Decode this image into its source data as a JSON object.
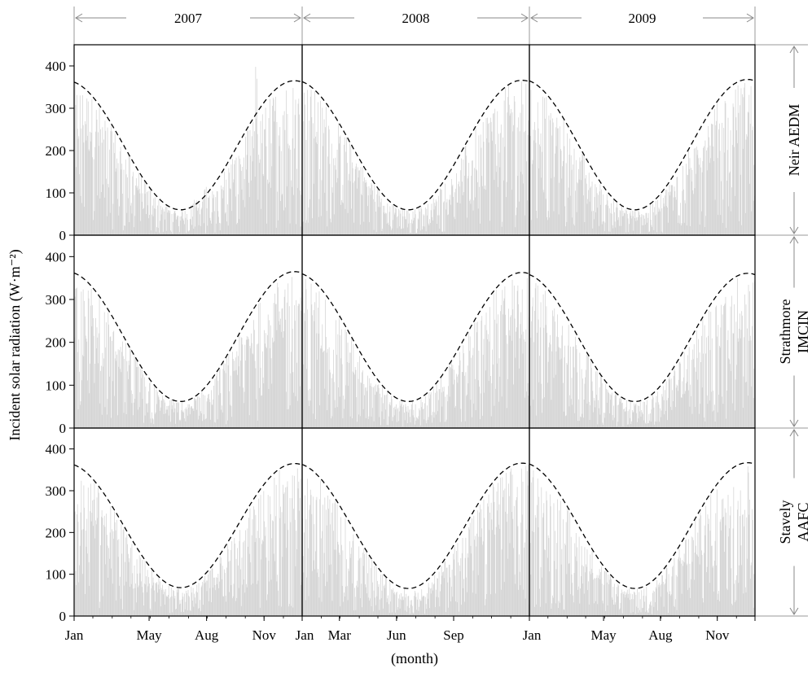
{
  "chart_data": {
    "type": "bar",
    "ylabel": "Incident solar radiation (W·m⁻²)",
    "xlabel": "(month)",
    "ylim": [
      0,
      450
    ],
    "yticks": [
      0,
      100,
      200,
      300,
      400
    ],
    "grid": false,
    "columns": [
      "2007",
      "2008",
      "2009"
    ],
    "rows": [
      "Neir AEDM",
      "Strathmore IMCIN",
      "Stavely AAFC"
    ],
    "column_xticks": [
      [
        {
          "label": "Jan",
          "doy": 1
        },
        {
          "label": "May",
          "doy": 121
        },
        {
          "label": "Aug",
          "doy": 213
        },
        {
          "label": "Nov",
          "doy": 305
        }
      ],
      [
        {
          "label": "Jan",
          "doy": 1
        },
        {
          "label": "Mar",
          "doy": 61
        },
        {
          "label": "Jun",
          "doy": 153
        },
        {
          "label": "Sep",
          "doy": 245
        }
      ],
      [
        {
          "label": "Jan",
          "doy": 1
        },
        {
          "label": "May",
          "doy": 121
        },
        {
          "label": "Aug",
          "doy": 213
        },
        {
          "label": "Nov",
          "doy": 305
        }
      ]
    ],
    "final_tick": {
      "label": "Jan",
      "doy": 366
    },
    "series": [
      {
        "type": "bar",
        "color": "#d4d4d4",
        "description": "daily incident solar radiation"
      },
      {
        "type": "line",
        "style": "dashed",
        "color": "#000000",
        "description": "clear-sky envelope"
      }
    ],
    "envelope": [
      [
        {
          "year": "2007",
          "jan1": 60,
          "peak": 365,
          "peak_doy": 172
        },
        {
          "year": "2008",
          "jan1": 60,
          "peak": 366,
          "peak_doy": 172
        },
        {
          "year": "2009",
          "jan1": 60,
          "peak": 368,
          "peak_doy": 172
        }
      ],
      [
        {
          "year": "2007",
          "jan1": 62,
          "peak": 365,
          "peak_doy": 172
        },
        {
          "year": "2008",
          "jan1": 62,
          "peak": 363,
          "peak_doy": 172
        },
        {
          "year": "2009",
          "jan1": 62,
          "peak": 361,
          "peak_doy": 172
        }
      ],
      [
        {
          "year": "2007",
          "jan1": 68,
          "peak": 365,
          "peak_doy": 172
        },
        {
          "year": "2008",
          "jan1": 66,
          "peak": 366,
          "peak_doy": 172
        },
        {
          "year": "2009",
          "jan1": 66,
          "peak": 367,
          "peak_doy": 172
        }
      ]
    ]
  }
}
